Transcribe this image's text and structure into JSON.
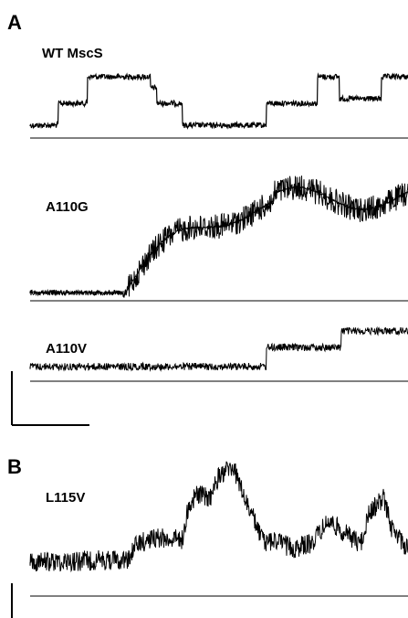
{
  "panels": {
    "A": {
      "letter": "A",
      "traces": [
        {
          "label": "WT MscS",
          "levels": [
            0,
            1,
            2,
            2,
            1,
            0,
            1,
            2,
            1,
            2
          ]
        },
        {
          "label": "A110G",
          "behavior": "gradual rise in current with many channel openings"
        },
        {
          "label": "A110V",
          "levels": [
            0,
            1,
            2
          ]
        }
      ]
    },
    "B": {
      "letter": "B",
      "traces": [
        {
          "label": "L115V",
          "behavior": "fluctuating multi-level current"
        }
      ]
    }
  },
  "colors": {
    "trace": "#000000",
    "baseline": "#000000",
    "background": "#ffffff"
  }
}
